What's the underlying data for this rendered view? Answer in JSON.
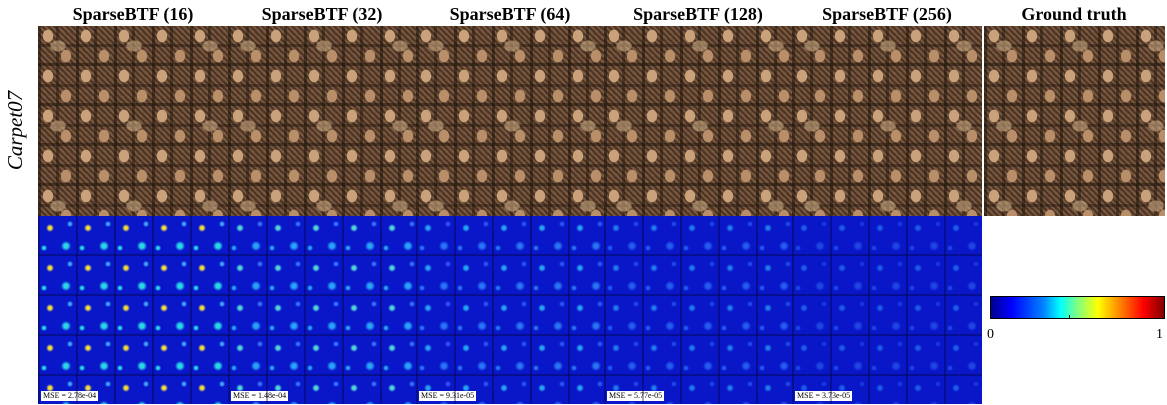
{
  "columns": [
    {
      "title": "SparseBTF (16)",
      "mse": "MSE = 2.78e-04"
    },
    {
      "title": "SparseBTF (32)",
      "mse": "MSE = 1.48e-04"
    },
    {
      "title": "SparseBTF (64)",
      "mse": "MSE = 9.31e-05"
    },
    {
      "title": "SparseBTF (128)",
      "mse": "MSE = 5.77e-05"
    },
    {
      "title": "SparseBTF (256)",
      "mse": "MSE = 3.73e-05"
    }
  ],
  "ground_truth": {
    "title": "Ground truth"
  },
  "row_label": "Carpet07",
  "colorbar": {
    "min_label": "0",
    "max_label": "1"
  }
}
